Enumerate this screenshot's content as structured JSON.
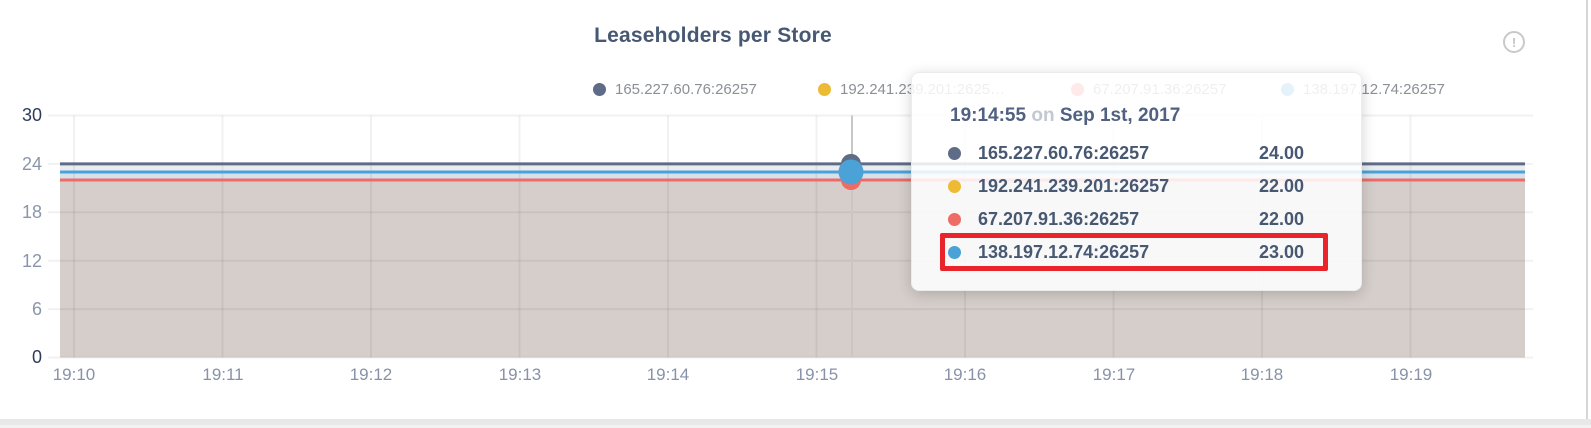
{
  "chart": {
    "title": "Leaseholders per Store"
  },
  "icons": {
    "info": "!"
  },
  "legend": {
    "items": [
      {
        "label": "165.227.60.76:26257",
        "color": "#5F6C87"
      },
      {
        "label": "192.241.239.201:2625…",
        "color": "#EDBA33"
      },
      {
        "label": "67.207.91.36:26257",
        "color": "#EE6B66"
      },
      {
        "label": "138.197.12.74:26257",
        "color": "#4BA2D6"
      }
    ]
  },
  "axes": {
    "y_ticks": [
      "30",
      "24",
      "18",
      "12",
      "6",
      "0"
    ],
    "x_ticks": [
      "19:10",
      "19:11",
      "19:12",
      "19:13",
      "19:14",
      "19:15",
      "19:16",
      "19:17",
      "19:18",
      "19:19"
    ]
  },
  "tooltip": {
    "time": "19:14:55",
    "preposition": "on",
    "date": "Sep 1st, 2017",
    "rows": [
      {
        "label": "165.227.60.76:26257",
        "value": "24.00",
        "color": "#5F6C87",
        "highlighted": false
      },
      {
        "label": "192.241.239.201:26257",
        "value": "22.00",
        "color": "#EDBA33",
        "highlighted": false
      },
      {
        "label": "67.207.91.36:26257",
        "value": "22.00",
        "color": "#EE6B66",
        "highlighted": false
      },
      {
        "label": "138.197.12.74:26257",
        "value": "23.00",
        "color": "#4BA2D6",
        "highlighted": true
      }
    ]
  },
  "chart_data": {
    "type": "line",
    "title": "Leaseholders per Store",
    "x_ticks": [
      "19:10",
      "19:11",
      "19:12",
      "19:13",
      "19:14",
      "19:15",
      "19:16",
      "19:17",
      "19:18",
      "19:19"
    ],
    "y_ticks": [
      30,
      24,
      18,
      12,
      6,
      0
    ],
    "ylim": [
      0,
      30
    ],
    "grid": true,
    "area_fill": true,
    "legend_position": "top",
    "series": [
      {
        "name": "165.227.60.76:26257",
        "color": "#5F6C87",
        "constant_value": 24
      },
      {
        "name": "192.241.239.201:26257",
        "color": "#EDBA33",
        "constant_value": 22
      },
      {
        "name": "67.207.91.36:26257",
        "color": "#EE6B66",
        "constant_value": 22
      },
      {
        "name": "138.197.12.74:26257",
        "color": "#4BA2D6",
        "constant_value": 23
      }
    ],
    "hover": {
      "time": "19:14:55",
      "date": "Sep 1st, 2017",
      "values": [
        24,
        22,
        22,
        23
      ],
      "highlighted_series": "138.197.12.74:26257"
    }
  }
}
